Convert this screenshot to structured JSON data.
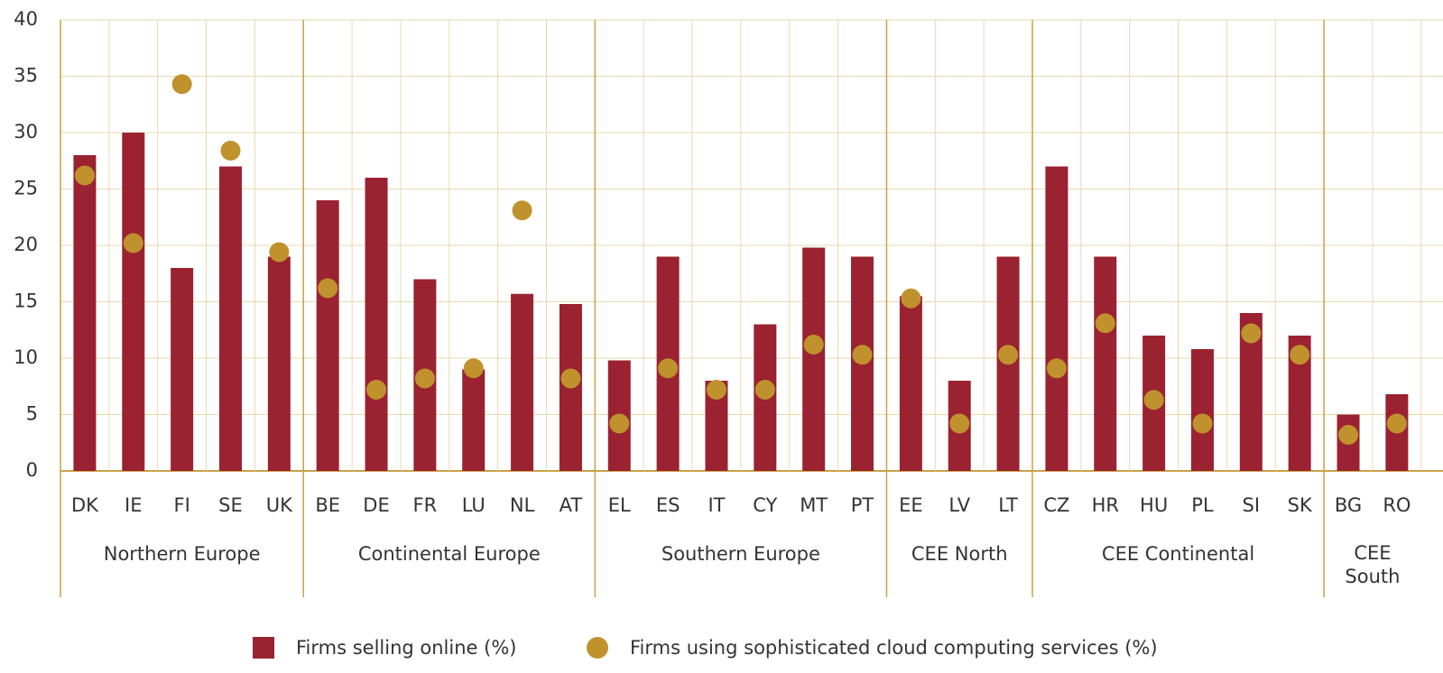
{
  "chart_data": {
    "type": "bar",
    "groups": [
      {
        "name": "Northern Europe",
        "categories": [
          "DK",
          "IE",
          "FI",
          "SE",
          "UK"
        ]
      },
      {
        "name": "Continental Europe",
        "categories": [
          "BE",
          "DE",
          "FR",
          "LU",
          "NL",
          "AT"
        ]
      },
      {
        "name": "Southern Europe",
        "categories": [
          "EL",
          "ES",
          "IT",
          "CY",
          "MT",
          "PT"
        ]
      },
      {
        "name": "CEE North",
        "categories": [
          "EE",
          "LV",
          "LT"
        ]
      },
      {
        "name": "CEE Continental",
        "categories": [
          "CZ",
          "HR",
          "HU",
          "PL",
          "SI",
          "SK"
        ]
      },
      {
        "name": "CEE\nSouth",
        "categories": [
          "BG",
          "RO"
        ]
      }
    ],
    "series": [
      {
        "name": "Firms selling online (%)",
        "type": "bar",
        "color": "#9b2230",
        "values": [
          28,
          30,
          18,
          27,
          19,
          24,
          26,
          17,
          9,
          15.7,
          14.8,
          9.8,
          19,
          8,
          13,
          19.8,
          19,
          15.5,
          8,
          19,
          27,
          19,
          12,
          10.8,
          14,
          12,
          5,
          6.8
        ]
      },
      {
        "name": "Firms using sophisticated cloud computing services (%)",
        "type": "scatter",
        "color": "#c0922e",
        "values": [
          26.2,
          20.2,
          34.3,
          28.4,
          19.4,
          16.2,
          7.2,
          8.2,
          9.1,
          23.1,
          8.2,
          4.2,
          9.1,
          7.2,
          7.2,
          11.2,
          10.3,
          15.3,
          4.2,
          10.3,
          9.1,
          13.1,
          6.3,
          4.2,
          12.2,
          10.3,
          3.2,
          4.2
        ]
      }
    ],
    "ylim": [
      0,
      40
    ],
    "yticks": [
      0,
      5,
      10,
      15,
      20,
      25,
      30,
      35,
      40
    ],
    "grid": true
  }
}
